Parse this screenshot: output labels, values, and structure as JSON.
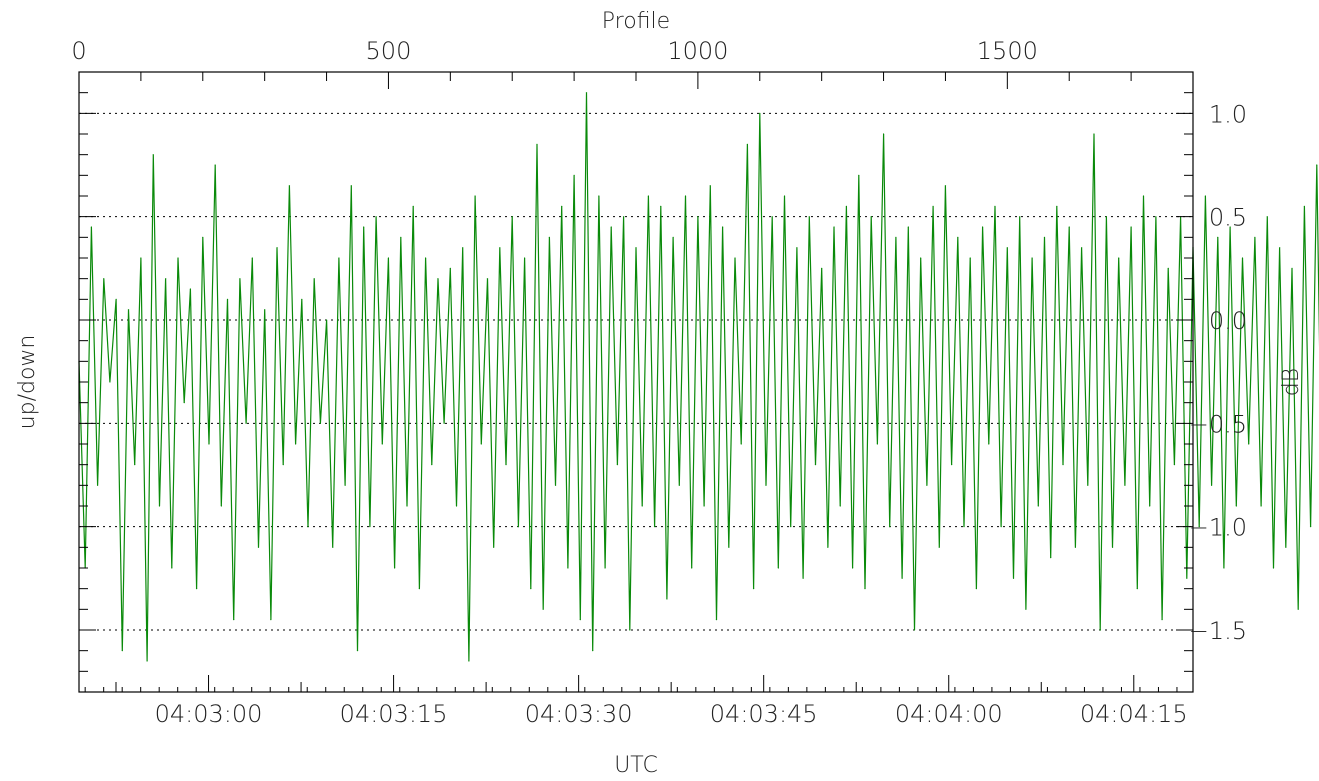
{
  "chart_data": {
    "type": "line",
    "xlabel": "UTC",
    "top_xlabel": "Profile",
    "ylabel": "up/down",
    "right_ylabel": "dB",
    "xlim_seconds": [
      -10.5,
      79.8
    ],
    "top_xlim": [
      0,
      1800
    ],
    "ylim": [
      -1.8,
      1.2
    ],
    "x_tick_labels": [
      "04:03:00",
      "04:03:15",
      "04:03:30",
      "04:03:45",
      "04:04:00",
      "04:04:15"
    ],
    "top_tick_labels": [
      "0",
      "500",
      "1000",
      "1500"
    ],
    "y_tick_labels": [
      "1.0",
      "0.5",
      "0.0",
      "−0.5",
      "−1.0",
      "−1.5"
    ],
    "y_ticks": [
      1.0,
      0.5,
      0.0,
      -0.5,
      -1.0,
      -1.5
    ],
    "grid": "horizontal dotted at y ticks",
    "line_color": "#0a8a0a",
    "series": [
      {
        "profile_step": 10,
        "values": [
          -0.2,
          -1.2,
          0.45,
          -0.8,
          0.2,
          -0.3,
          0.1,
          -1.6,
          0.05,
          -0.7,
          0.3,
          -1.65,
          0.8,
          -0.9,
          0.2,
          -1.2,
          0.3,
          -0.4,
          0.15,
          -1.3,
          0.4,
          -0.6,
          0.75,
          -0.9,
          0.1,
          -1.45,
          0.2,
          -0.5,
          0.3,
          -1.1,
          0.05,
          -1.45,
          0.35,
          -0.7,
          0.65,
          -0.6,
          0.1,
          -1.0,
          0.2,
          -0.5,
          0.0,
          -1.1,
          0.3,
          -0.8,
          0.65,
          -1.6,
          0.45,
          -1.0,
          0.5,
          -0.6,
          0.3,
          -1.2,
          0.4,
          -0.9,
          0.55,
          -1.3,
          0.3,
          -0.7,
          0.2,
          -0.5,
          0.25,
          -0.9,
          0.35,
          -1.65,
          0.6,
          -0.6,
          0.2,
          -1.1,
          0.35,
          -0.7,
          0.5,
          -1.0,
          0.3,
          -1.3,
          0.85,
          -1.4,
          0.4,
          -0.8,
          0.55,
          -1.2,
          0.7,
          -1.45,
          1.1,
          -1.6,
          0.6,
          -1.2,
          0.45,
          -0.7,
          0.5,
          -1.5,
          0.35,
          -0.9,
          0.6,
          -1.0,
          0.55,
          -1.35,
          0.4,
          -0.8,
          0.6,
          -1.2,
          0.5,
          -0.9,
          0.65,
          -1.45,
          0.45,
          -1.1,
          0.3,
          -0.6,
          0.85,
          -1.3,
          1.0,
          -0.8,
          0.5,
          -1.2,
          0.6,
          -1.0,
          0.35,
          -1.25,
          0.5,
          -0.7,
          0.25,
          -1.1,
          0.45,
          -0.9,
          0.55,
          -1.2,
          0.7,
          -1.3,
          0.5,
          -0.6,
          0.9,
          -1.0,
          0.4,
          -1.25,
          0.45,
          -1.5,
          0.3,
          -0.8,
          0.55,
          -1.1,
          0.65,
          -0.7,
          0.4,
          -1.0,
          0.3,
          -1.3,
          0.45,
          -0.6,
          0.55,
          -1.0,
          0.35,
          -1.25,
          0.5,
          -1.4,
          0.3,
          -0.9,
          0.4,
          -1.15,
          0.55,
          -0.7,
          0.45,
          -1.1,
          0.35,
          -0.8,
          0.9,
          -1.5,
          0.5,
          -1.1,
          0.3,
          -0.8,
          0.45,
          -1.3,
          0.6,
          -0.9,
          0.5,
          -1.45,
          0.25,
          -0.7,
          0.5,
          -1.25,
          0.35,
          -1.0,
          0.6,
          -0.8,
          0.4,
          -1.2,
          0.45,
          -0.9,
          0.3,
          -0.6,
          0.4,
          -0.9,
          0.5,
          -1.2,
          0.35,
          -1.1,
          0.25,
          -1.4,
          0.55,
          -1.0,
          0.75,
          -1.2,
          0.45,
          -0.5,
          0.62,
          -0.8
        ]
      }
    ]
  }
}
